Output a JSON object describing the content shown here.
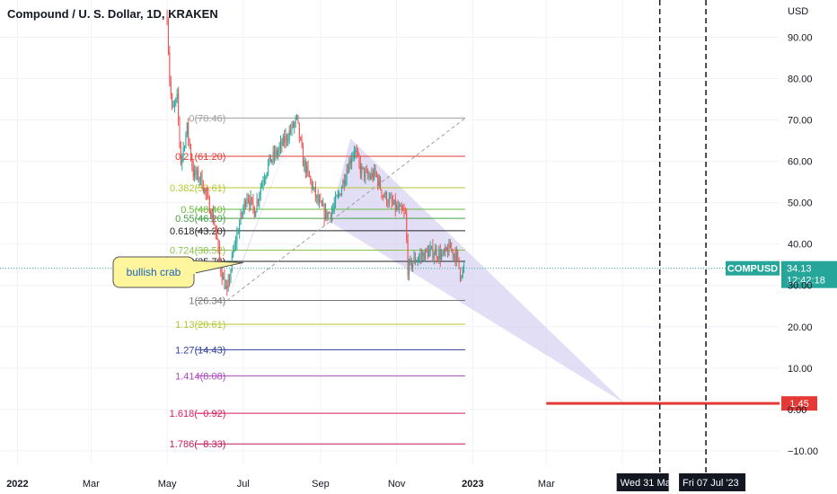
{
  "header": {
    "title": "Compound / U. S. Dollar, 1D, KRAKEN"
  },
  "chart_data": {
    "type": "candlestick",
    "title": "Compound / U. S. Dollar, 1D, KRAKEN",
    "currency_label": "USD",
    "ylim": [
      -13.5,
      99
    ],
    "y_ticks": [
      -10,
      0,
      10,
      20,
      30,
      40,
      50,
      60,
      70,
      80,
      90
    ],
    "y_tick_labels": [
      "−10.00",
      "0.00",
      "10.00",
      "20.00",
      "30.00",
      "40.00",
      "50.00",
      "60.00",
      "70.00",
      "80.00",
      "90.00"
    ],
    "x_range": [
      "2021-12-18",
      "2023-09-04"
    ],
    "x_ticks": [
      {
        "date": "2022-01-01",
        "label": "2022",
        "bold": true
      },
      {
        "date": "2022-03-01",
        "label": "Mar"
      },
      {
        "date": "2022-05-01",
        "label": "May"
      },
      {
        "date": "2022-07-01",
        "label": "Jul"
      },
      {
        "date": "2022-09-01",
        "label": "Sep"
      },
      {
        "date": "2022-11-01",
        "label": "Nov"
      },
      {
        "date": "2023-01-01",
        "label": "2023",
        "bold": true
      },
      {
        "date": "2023-03-01",
        "label": "Mar"
      },
      {
        "date": "2023-05-01",
        "label": "M"
      }
    ],
    "price_series": {
      "name": "COMPUSD",
      "start_date": "2022-05-01",
      "end_date": "2022-12-25",
      "keypoints": [
        [
          "2022-05-01",
          95
        ],
        [
          "2022-05-03",
          80
        ],
        [
          "2022-05-05",
          72
        ],
        [
          "2022-05-09",
          75
        ],
        [
          "2022-05-12",
          60
        ],
        [
          "2022-05-17",
          68
        ],
        [
          "2022-05-22",
          57
        ],
        [
          "2022-05-28",
          56
        ],
        [
          "2022-06-03",
          50
        ],
        [
          "2022-06-08",
          45
        ],
        [
          "2022-06-13",
          34
        ],
        [
          "2022-06-18",
          28
        ],
        [
          "2022-06-23",
          38
        ],
        [
          "2022-06-28",
          45
        ],
        [
          "2022-07-04",
          52
        ],
        [
          "2022-07-10",
          48
        ],
        [
          "2022-07-16",
          55
        ],
        [
          "2022-07-22",
          60
        ],
        [
          "2022-07-28",
          62
        ],
        [
          "2022-08-03",
          65
        ],
        [
          "2022-08-09",
          68
        ],
        [
          "2022-08-13",
          70
        ],
        [
          "2022-08-18",
          60
        ],
        [
          "2022-08-24",
          55
        ],
        [
          "2022-08-30",
          50
        ],
        [
          "2022-09-05",
          47
        ],
        [
          "2022-09-10",
          48
        ],
        [
          "2022-09-16",
          52
        ],
        [
          "2022-09-22",
          58
        ],
        [
          "2022-09-28",
          63
        ],
        [
          "2022-10-03",
          58
        ],
        [
          "2022-10-09",
          56
        ],
        [
          "2022-10-15",
          57
        ],
        [
          "2022-10-21",
          52
        ],
        [
          "2022-10-27",
          50
        ],
        [
          "2022-11-03",
          48
        ],
        [
          "2022-11-08",
          47
        ],
        [
          "2022-11-10",
          34
        ],
        [
          "2022-11-15",
          36
        ],
        [
          "2022-11-20",
          37
        ],
        [
          "2022-11-26",
          38
        ],
        [
          "2022-12-02",
          38
        ],
        [
          "2022-12-08",
          37
        ],
        [
          "2022-12-14",
          39
        ],
        [
          "2022-12-19",
          37
        ],
        [
          "2022-12-22",
          33
        ],
        [
          "2022-12-25",
          34
        ]
      ]
    },
    "last_price": {
      "label": "COMPUSD",
      "value": 34.13,
      "value_label": "34.13",
      "countdown": "12:42:18"
    },
    "target_line": {
      "value": 1.45,
      "label": "1.45",
      "from_date": "2023-03-01"
    },
    "fib_levels": [
      {
        "ratio": "0",
        "value": 70.46,
        "label": "0(70.46)",
        "color": "#9e9e9e"
      },
      {
        "ratio": "0.21",
        "value": 61.2,
        "label": "0.21(61.20)",
        "color": "#e53935"
      },
      {
        "ratio": "0.382",
        "value": 53.61,
        "label": "0.382(53.61)",
        "color": "#b5c730"
      },
      {
        "ratio": "0.5",
        "value": 48.4,
        "label": "0.5(48.40)",
        "color": "#66bb3a"
      },
      {
        "ratio": "0.55",
        "value": 46.2,
        "label": "0.55(46.20)",
        "color": "#43a047"
      },
      {
        "ratio": "0.618",
        "value": 43.2,
        "label": "0.618(43.20)",
        "color": "#222222"
      },
      {
        "ratio": "0.724",
        "value": 38.52,
        "label": "0.724(38.52)",
        "color": "#8bc34a"
      },
      {
        "ratio": "0.786",
        "value": 35.79,
        "label": "0.786(35.79)",
        "color": "#222222"
      },
      {
        "ratio": "1",
        "value": 26.34,
        "label": "1(26.34)",
        "color": "#777777"
      },
      {
        "ratio": "1.13",
        "value": 20.61,
        "label": "1.13(20.61)",
        "color": "#b5c730"
      },
      {
        "ratio": "1.27",
        "value": 14.43,
        "label": "1.27(14.43)",
        "color": "#303f9f"
      },
      {
        "ratio": "1.414",
        "value": 8.08,
        "label": "1.414(8.08)",
        "color": "#ab47bc"
      },
      {
        "ratio": "1.618",
        "value": -0.92,
        "label": "1.618(−0.92)",
        "color": "#d81b60"
      },
      {
        "ratio": "1.786",
        "value": -8.33,
        "label": "1.786(−8.33)",
        "color": "#c2185b"
      }
    ],
    "fib_range": {
      "from_date": "2022-05-24",
      "to_date": "2022-12-26",
      "label_anchor_date": "2022-06-17"
    },
    "fib_trend_line": {
      "from": [
        "2022-06-18",
        26.34
      ],
      "to": [
        "2022-12-26",
        70.46
      ]
    },
    "harmonic_pattern": {
      "X": [
        "2022-06-18",
        26.34
      ],
      "A": [
        "2022-08-13",
        70.46
      ],
      "B": [
        "2022-09-08",
        45.5
      ],
      "C": [
        "2022-09-25",
        65.5
      ],
      "D": [
        "2023-05-03",
        1.45
      ],
      "X2": [
        "2022-07-01",
        35.79
      ],
      "fill": "#d7d3f1"
    },
    "annotation": {
      "text": "bullish crab",
      "pointer_to": [
        "2022-07-01",
        35.5
      ]
    },
    "vertical_markers": [
      {
        "date": "2023-05-31",
        "label": "Wed 31 Ma"
      },
      {
        "date": "2023-07-07",
        "label": "Fri 07 Jul '23"
      }
    ],
    "colors": {
      "up": "#26a69a",
      "down": "#ef5350",
      "pattern_fill": "#d7d3f1",
      "target": "#e53935",
      "marker": "#131722"
    }
  }
}
